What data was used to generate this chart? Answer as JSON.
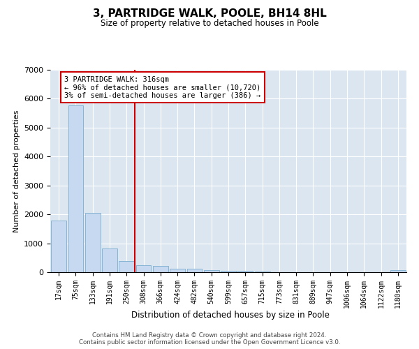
{
  "title": "3, PARTRIDGE WALK, POOLE, BH14 8HL",
  "subtitle": "Size of property relative to detached houses in Poole",
  "xlabel": "Distribution of detached houses by size in Poole",
  "ylabel": "Number of detached properties",
  "bar_color": "#c6d9f0",
  "bar_edge_color": "#7aadcf",
  "vline_color": "#cc0000",
  "categories": [
    "17sqm",
    "75sqm",
    "133sqm",
    "191sqm",
    "250sqm",
    "308sqm",
    "366sqm",
    "424sqm",
    "482sqm",
    "540sqm",
    "599sqm",
    "657sqm",
    "715sqm",
    "773sqm",
    "831sqm",
    "889sqm",
    "947sqm",
    "1006sqm",
    "1064sqm",
    "1122sqm",
    "1180sqm"
  ],
  "values": [
    1780,
    5780,
    2060,
    830,
    380,
    230,
    210,
    120,
    110,
    80,
    55,
    55,
    30,
    0,
    0,
    0,
    0,
    0,
    0,
    0,
    70
  ],
  "vline_index": 5,
  "ylim": [
    0,
    7000
  ],
  "yticks": [
    0,
    1000,
    2000,
    3000,
    4000,
    5000,
    6000,
    7000
  ],
  "annotation_text": "3 PARTRIDGE WALK: 316sqm\n← 96% of detached houses are smaller (10,720)\n3% of semi-detached houses are larger (386) →",
  "annotation_box_color": "#ffffff",
  "annotation_box_edge": "#cc0000",
  "footer_text": "Contains HM Land Registry data © Crown copyright and database right 2024.\nContains public sector information licensed under the Open Government Licence v3.0.",
  "bg_color": "#ffffff",
  "grid_color": "#dce6f1",
  "figsize": [
    6.0,
    5.0
  ],
  "dpi": 100
}
